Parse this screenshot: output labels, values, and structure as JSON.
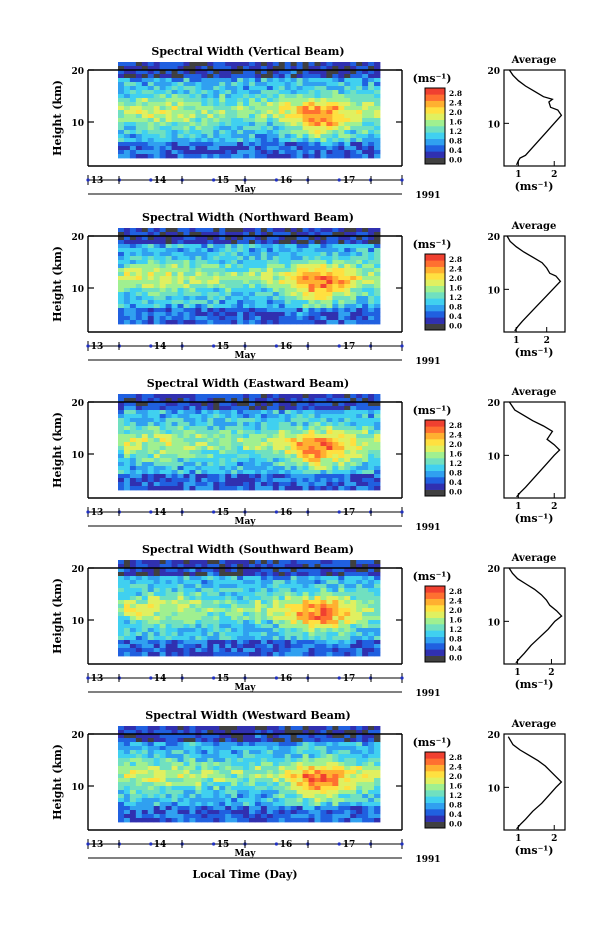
{
  "colors": {
    "colorbar": [
      "#404040",
      "#3030b0",
      "#2060e0",
      "#30a0f0",
      "#40d0f0",
      "#70e0c0",
      "#a0f090",
      "#e0f060",
      "#ffe040",
      "#ffb030",
      "#ff7030",
      "#f04030"
    ]
  },
  "chart_data": [
    {
      "type": "heatmap",
      "title": "Spectral Width (Vertical Beam)",
      "ylabel": "Height (km)",
      "xlabel": "May",
      "year_label": "1991",
      "x_ticks": [
        "13",
        "14",
        "15",
        "16",
        "17"
      ],
      "y_ticks": [
        "20",
        "10"
      ],
      "colorbar_unit": "(ms⁻¹)",
      "colorbar_ticks": [
        "0.0",
        "0.4",
        "0.8",
        "1.2",
        "1.6",
        "2.0",
        "2.4",
        "2.8"
      ],
      "average": {
        "title": "Average",
        "xlabel": "(ms⁻¹)",
        "x_ticks": [
          "1",
          "2"
        ],
        "y_ticks": [
          "20",
          "10"
        ],
        "xlim": [
          0.6,
          2.3
        ],
        "ylim": [
          2,
          20
        ],
        "profile": [
          [
            0.95,
            2.2
          ],
          [
            1.0,
            3.0
          ],
          [
            1.05,
            3.5
          ],
          [
            1.2,
            4.0
          ],
          [
            1.4,
            5.5
          ],
          [
            1.6,
            7.0
          ],
          [
            1.8,
            8.5
          ],
          [
            2.0,
            10.0
          ],
          [
            2.2,
            11.5
          ],
          [
            2.1,
            12.5
          ],
          [
            1.9,
            13.0
          ],
          [
            1.85,
            14.0
          ],
          [
            1.95,
            14.5
          ],
          [
            1.7,
            15.0
          ],
          [
            1.45,
            16.0
          ],
          [
            1.2,
            17.0
          ],
          [
            1.0,
            18.0
          ],
          [
            0.85,
            19.0
          ],
          [
            0.75,
            20.0
          ]
        ]
      }
    },
    {
      "type": "heatmap",
      "title": "Spectral Width (Northward Beam)",
      "ylabel": "Height (km)",
      "xlabel": "May",
      "year_label": "1991",
      "x_ticks": [
        "13",
        "14",
        "15",
        "16",
        "17"
      ],
      "y_ticks": [
        "20",
        "10"
      ],
      "colorbar_unit": "(ms⁻¹)",
      "colorbar_ticks": [
        "0.0",
        "0.4",
        "0.8",
        "1.2",
        "1.6",
        "2.0",
        "2.4",
        "2.8"
      ],
      "average": {
        "title": "Average",
        "xlabel": "(ms⁻¹)",
        "x_ticks": [
          "1",
          "2"
        ],
        "y_ticks": [
          "20",
          "10"
        ],
        "xlim": [
          0.6,
          2.6
        ],
        "ylim": [
          2,
          20
        ],
        "profile": [
          [
            0.95,
            2.2
          ],
          [
            1.05,
            3.0
          ],
          [
            1.2,
            4.0
          ],
          [
            1.45,
            5.5
          ],
          [
            1.7,
            7.0
          ],
          [
            1.95,
            8.5
          ],
          [
            2.2,
            10.0
          ],
          [
            2.45,
            11.5
          ],
          [
            2.3,
            12.5
          ],
          [
            2.1,
            13.0
          ],
          [
            2.0,
            14.0
          ],
          [
            1.85,
            15.0
          ],
          [
            1.55,
            16.0
          ],
          [
            1.25,
            17.0
          ],
          [
            1.0,
            18.0
          ],
          [
            0.8,
            19.0
          ],
          [
            0.7,
            20.0
          ]
        ]
      }
    },
    {
      "type": "heatmap",
      "title": "Spectral Width (Eastward Beam)",
      "ylabel": "Height (km)",
      "xlabel": "May",
      "year_label": "1991",
      "x_ticks": [
        "13",
        "14",
        "15",
        "16",
        "17"
      ],
      "y_ticks": [
        "20",
        "10"
      ],
      "colorbar_unit": "(ms⁻¹)",
      "colorbar_ticks": [
        "0.0",
        "0.4",
        "0.8",
        "1.2",
        "1.6",
        "2.0",
        "2.4",
        "2.8"
      ],
      "average": {
        "title": "Average",
        "xlabel": "(ms⁻¹)",
        "x_ticks": [
          "1",
          "2"
        ],
        "y_ticks": [
          "20",
          "10"
        ],
        "xlim": [
          0.6,
          2.3
        ],
        "ylim": [
          2,
          20
        ],
        "profile": [
          [
            0.95,
            2.2
          ],
          [
            1.05,
            3.0
          ],
          [
            1.2,
            4.0
          ],
          [
            1.4,
            5.5
          ],
          [
            1.6,
            7.0
          ],
          [
            1.8,
            8.5
          ],
          [
            2.0,
            10.0
          ],
          [
            2.15,
            11.0
          ],
          [
            2.0,
            12.0
          ],
          [
            1.8,
            13.0
          ],
          [
            1.95,
            14.5
          ],
          [
            1.7,
            15.5
          ],
          [
            1.4,
            16.5
          ],
          [
            1.15,
            17.5
          ],
          [
            0.9,
            18.5
          ],
          [
            0.75,
            20.0
          ]
        ]
      }
    },
    {
      "type": "heatmap",
      "title": "Spectral Width (Southward Beam)",
      "ylabel": "Height (km)",
      "xlabel": "May",
      "year_label": "1991",
      "x_ticks": [
        "13",
        "14",
        "15",
        "16",
        "17"
      ],
      "y_ticks": [
        "20",
        "10"
      ],
      "colorbar_unit": "(ms⁻¹)",
      "colorbar_ticks": [
        "0.0",
        "0.4",
        "0.8",
        "1.2",
        "1.6",
        "2.0",
        "2.4",
        "2.8"
      ],
      "average": {
        "title": "Average",
        "xlabel": "(ms⁻¹)",
        "x_ticks": [
          "1",
          "2"
        ],
        "y_ticks": [
          "20",
          "10"
        ],
        "xlim": [
          0.6,
          2.4
        ],
        "ylim": [
          2,
          20
        ],
        "profile": [
          [
            0.95,
            2.2
          ],
          [
            1.05,
            3.0
          ],
          [
            1.2,
            4.0
          ],
          [
            1.4,
            5.5
          ],
          [
            1.65,
            7.0
          ],
          [
            1.9,
            8.5
          ],
          [
            2.1,
            10.0
          ],
          [
            2.3,
            11.0
          ],
          [
            2.15,
            12.0
          ],
          [
            1.95,
            13.0
          ],
          [
            1.85,
            14.0
          ],
          [
            1.7,
            15.0
          ],
          [
            1.5,
            16.0
          ],
          [
            1.25,
            17.0
          ],
          [
            1.0,
            18.0
          ],
          [
            0.85,
            19.0
          ],
          [
            0.75,
            20.0
          ]
        ]
      }
    },
    {
      "type": "heatmap",
      "title": "Spectral Width (Westward Beam)",
      "ylabel": "Height (km)",
      "xlabel": "May",
      "year_label": "1991",
      "x_ticks": [
        "13",
        "14",
        "15",
        "16",
        "17"
      ],
      "y_ticks": [
        "20",
        "10"
      ],
      "colorbar_unit": "(ms⁻¹)",
      "colorbar_ticks": [
        "0.0",
        "0.4",
        "0.8",
        "1.2",
        "1.6",
        "2.0",
        "2.4",
        "2.8"
      ],
      "average": {
        "title": "Average",
        "xlabel": "(ms⁻¹)",
        "x_ticks": [
          "1",
          "2"
        ],
        "y_ticks": [
          "20",
          "10"
        ],
        "xlim": [
          0.6,
          2.3
        ],
        "ylim": [
          2,
          20
        ],
        "profile": [
          [
            0.95,
            2.2
          ],
          [
            1.05,
            3.0
          ],
          [
            1.2,
            4.0
          ],
          [
            1.4,
            5.5
          ],
          [
            1.65,
            7.0
          ],
          [
            1.85,
            8.5
          ],
          [
            2.05,
            10.0
          ],
          [
            2.2,
            11.0
          ],
          [
            2.05,
            12.0
          ],
          [
            1.9,
            13.0
          ],
          [
            1.75,
            14.0
          ],
          [
            1.55,
            15.0
          ],
          [
            1.3,
            16.0
          ],
          [
            1.05,
            17.0
          ],
          [
            0.85,
            18.0
          ],
          [
            0.72,
            19.5
          ]
        ]
      }
    }
  ],
  "footer_xlabel": "Local Time (Day)"
}
